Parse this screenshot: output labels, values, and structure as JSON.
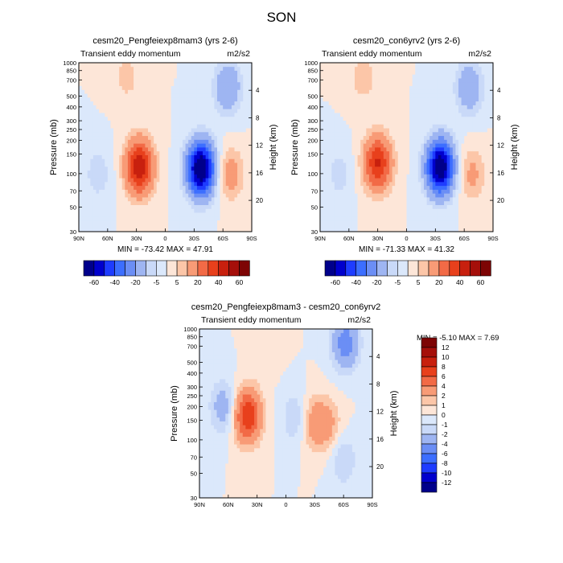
{
  "figure": {
    "title": "SON"
  },
  "chart_data": [
    {
      "type": "heatmap",
      "title": "cesm20_Pengfeiexp8mam3 (yrs 2-6)",
      "subtitle_left": "Transient eddy momentum",
      "units": "m2/s2",
      "ylabel": "Pressure (mb)",
      "ylabel_right": "Height (km)",
      "stats": "MIN = -73.42  MAX =  47.91",
      "x_ticks": [
        "90N",
        "60N",
        "30N",
        "0",
        "30S",
        "60S",
        "90S"
      ],
      "y_ticks": [
        30,
        50,
        70,
        100,
        150,
        200,
        250,
        300,
        400,
        500,
        700,
        850,
        1000
      ],
      "y_right_ticks": [
        4,
        8,
        12,
        16,
        20
      ],
      "ylim": [
        1000,
        30
      ],
      "features": [
        {
          "lat": 27,
          "p": 260,
          "value": 47.91
        },
        {
          "lat": -37,
          "p": 270,
          "value": -73.42
        },
        {
          "lat": -68,
          "p": 300,
          "value": 14
        },
        {
          "lat": 70,
          "p": 300,
          "value": -8
        },
        {
          "lat": 40,
          "p": 40,
          "value": 7
        },
        {
          "lat": -65,
          "p": 50,
          "value": -20
        }
      ],
      "legend": {
        "levels": [
          "-60",
          "-40",
          "-20",
          "-5",
          "5",
          "20",
          "40",
          "60"
        ],
        "placement": "bottom"
      }
    },
    {
      "type": "heatmap",
      "title": "cesm20_con6yrv2 (yrs 2-6)",
      "subtitle_left": "Transient eddy momentum",
      "units": "m2/s2",
      "ylabel": "Pressure (mb)",
      "ylabel_right": "Height (km)",
      "stats": "MIN = -71.33  MAX =  41.32",
      "x_ticks": [
        "90N",
        "60N",
        "30N",
        "0",
        "30S",
        "60S",
        "90S"
      ],
      "y_ticks": [
        30,
        50,
        70,
        100,
        150,
        200,
        250,
        300,
        400,
        500,
        700,
        850,
        1000
      ],
      "y_right_ticks": [
        4,
        8,
        12,
        16,
        20
      ],
      "ylim": [
        1000,
        30
      ],
      "features": [
        {
          "lat": 30,
          "p": 240,
          "value": 41.32
        },
        {
          "lat": -35,
          "p": 260,
          "value": -71.33
        },
        {
          "lat": -68,
          "p": 300,
          "value": 12
        },
        {
          "lat": 70,
          "p": 300,
          "value": -7
        },
        {
          "lat": 45,
          "p": 40,
          "value": 8
        },
        {
          "lat": -65,
          "p": 50,
          "value": -18
        }
      ],
      "legend": {
        "levels": [
          "-60",
          "-40",
          "-20",
          "-5",
          "5",
          "20",
          "40",
          "60"
        ],
        "placement": "bottom"
      }
    },
    {
      "type": "heatmap",
      "title": "cesm20_Pengfeiexp8mam3 - cesm20_con6yrv2",
      "subtitle_left": "Transient eddy momentum",
      "units": "m2/s2",
      "ylabel": "Pressure (mb)",
      "ylabel_right": "Height (km)",
      "stats": "MIN =  -5.10  MAX =   7.69",
      "x_ticks": [
        "90N",
        "60N",
        "30N",
        "0",
        "30S",
        "60S",
        "90S"
      ],
      "y_ticks": [
        30,
        50,
        70,
        100,
        150,
        200,
        250,
        300,
        400,
        500,
        700,
        850,
        1000
      ],
      "y_right_ticks": [
        4,
        8,
        12,
        16,
        20
      ],
      "ylim": [
        1000,
        30
      ],
      "features": [
        {
          "lat": 40,
          "p": 180,
          "value": 7.69
        },
        {
          "lat": 65,
          "p": 150,
          "value": -3
        },
        {
          "lat": -10,
          "p": 190,
          "value": -2
        },
        {
          "lat": -30,
          "p": 210,
          "value": 3
        },
        {
          "lat": -45,
          "p": 220,
          "value": 2
        },
        {
          "lat": -62,
          "p": 40,
          "value": -5.1
        },
        {
          "lat": -60,
          "p": 450,
          "value": -2
        },
        {
          "lat": 20,
          "p": 40,
          "value": 1
        }
      ],
      "legend": {
        "levels": [
          "12",
          "10",
          "8",
          "6",
          "4",
          "2",
          "1",
          "0",
          "-1",
          "-2",
          "-4",
          "-6",
          "-8",
          "-10",
          "-12"
        ],
        "placement": "right"
      }
    }
  ],
  "colors": {
    "diverging": [
      "#00008b",
      "#0000cd",
      "#1e3cff",
      "#3c6eff",
      "#6b8ef5",
      "#9eb5f2",
      "#c9d9f8",
      "#dbe8fb",
      "#fde6d8",
      "#fcc6a8",
      "#f89b76",
      "#f26a46",
      "#e8401c",
      "#c8200e",
      "#a50f0a",
      "#7d0404"
    ]
  }
}
